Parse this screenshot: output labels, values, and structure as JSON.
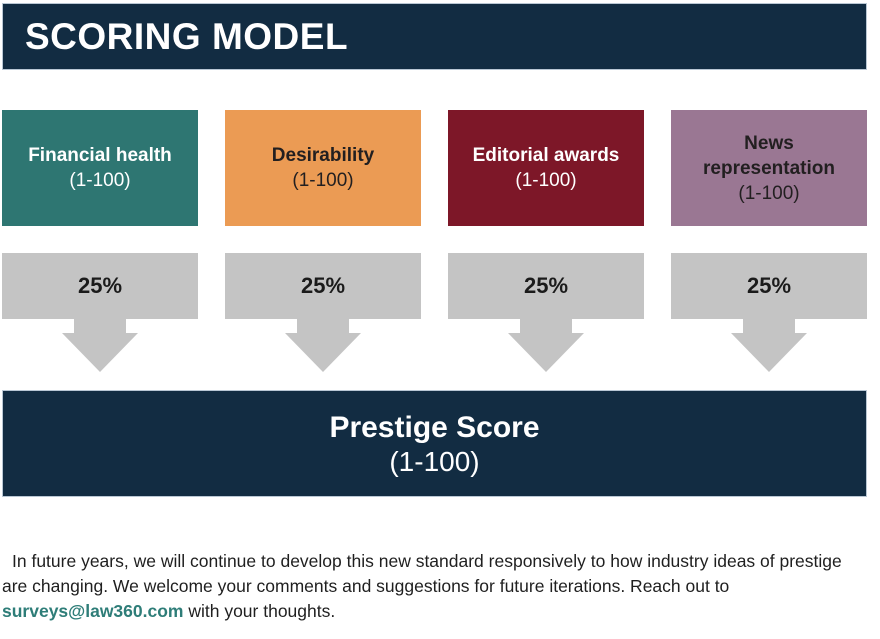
{
  "header": {
    "title": "SCORING MODEL"
  },
  "colors": {
    "navy": "#122c42",
    "gray_arrow": "#c4c4c4",
    "border_light": "#b9c7d4",
    "link_teal": "#2e7d78"
  },
  "factors": [
    {
      "name": "Financial health",
      "range": "(1-100)",
      "weight": "25%",
      "color": "#2e7672",
      "text_color": "#ffffff"
    },
    {
      "name": "Desirability",
      "range": "(1-100)",
      "weight": "25%",
      "color": "#eb9b54",
      "text_color": "#221f20"
    },
    {
      "name": "Editorial awards",
      "range": "(1-100)",
      "weight": "25%",
      "color": "#7d1728",
      "text_color": "#ffffff"
    },
    {
      "name": "News representation",
      "range": "(1-100)",
      "weight": "25%",
      "color": "#9a7793",
      "text_color": "#221f20"
    }
  ],
  "result": {
    "title": "Prestige Score",
    "range": "(1-100)"
  },
  "footer": {
    "text_before": "In future years, we will continue to develop this new standard responsively to how industry ideas of prestige are changing. We welcome your comments and suggestions for future iterations. Reach out to ",
    "link": "surveys@law360.com",
    "text_after": " with your thoughts."
  }
}
